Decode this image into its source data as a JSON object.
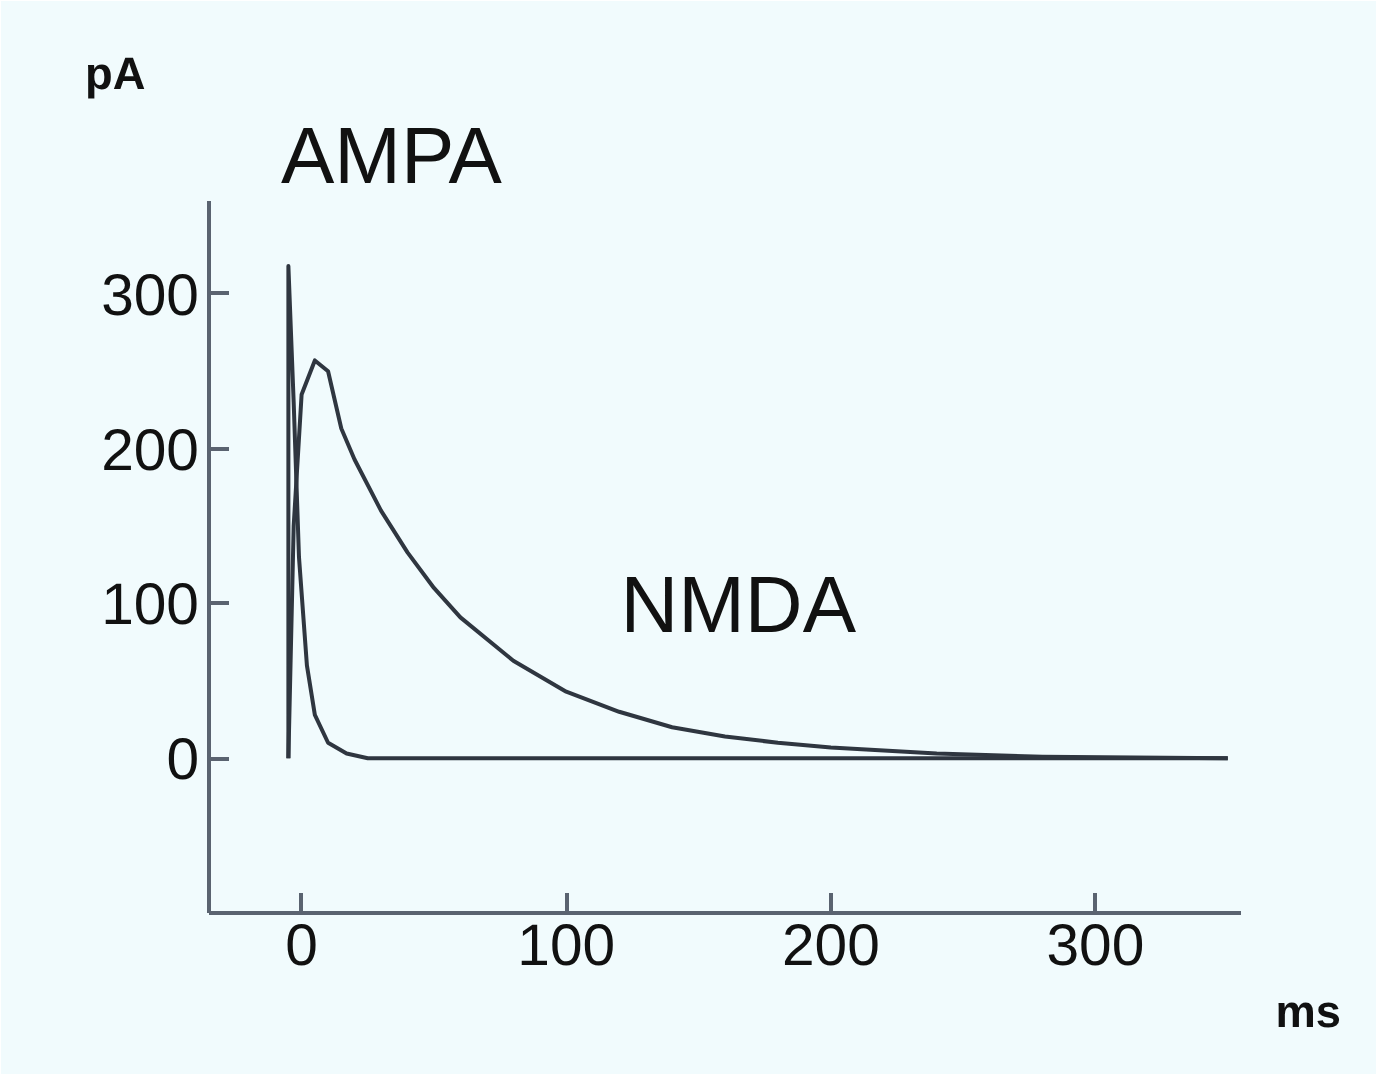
{
  "chart_data": {
    "type": "line",
    "xlabel": "ms",
    "ylabel": "pA",
    "xlim": [
      -35,
      355
    ],
    "ylim": [
      -100,
      360
    ],
    "xticks": [
      0,
      100,
      200,
      300
    ],
    "yticks": [
      0,
      100,
      200,
      300
    ],
    "grid": false,
    "legend": false,
    "marker": "none",
    "line_style": "solid",
    "series": [
      {
        "name": "AMPA",
        "color": "#2f3640",
        "x": [
          -5,
          -5,
          -3,
          -1,
          2,
          5,
          10,
          17,
          25,
          350
        ],
        "values": [
          0,
          318,
          230,
          130,
          60,
          28,
          10,
          3,
          0,
          0
        ]
      },
      {
        "name": "NMDA",
        "color": "#2f3640",
        "x": [
          -5,
          -3,
          0,
          5,
          10,
          15,
          20,
          30,
          40,
          50,
          60,
          80,
          100,
          120,
          140,
          160,
          180,
          200,
          240,
          280,
          350
        ],
        "values": [
          0,
          150,
          235,
          257,
          250,
          213,
          193,
          160,
          133,
          110,
          91,
          63,
          43,
          30,
          20,
          14,
          10,
          7,
          3,
          1,
          0
        ]
      }
    ]
  }
}
